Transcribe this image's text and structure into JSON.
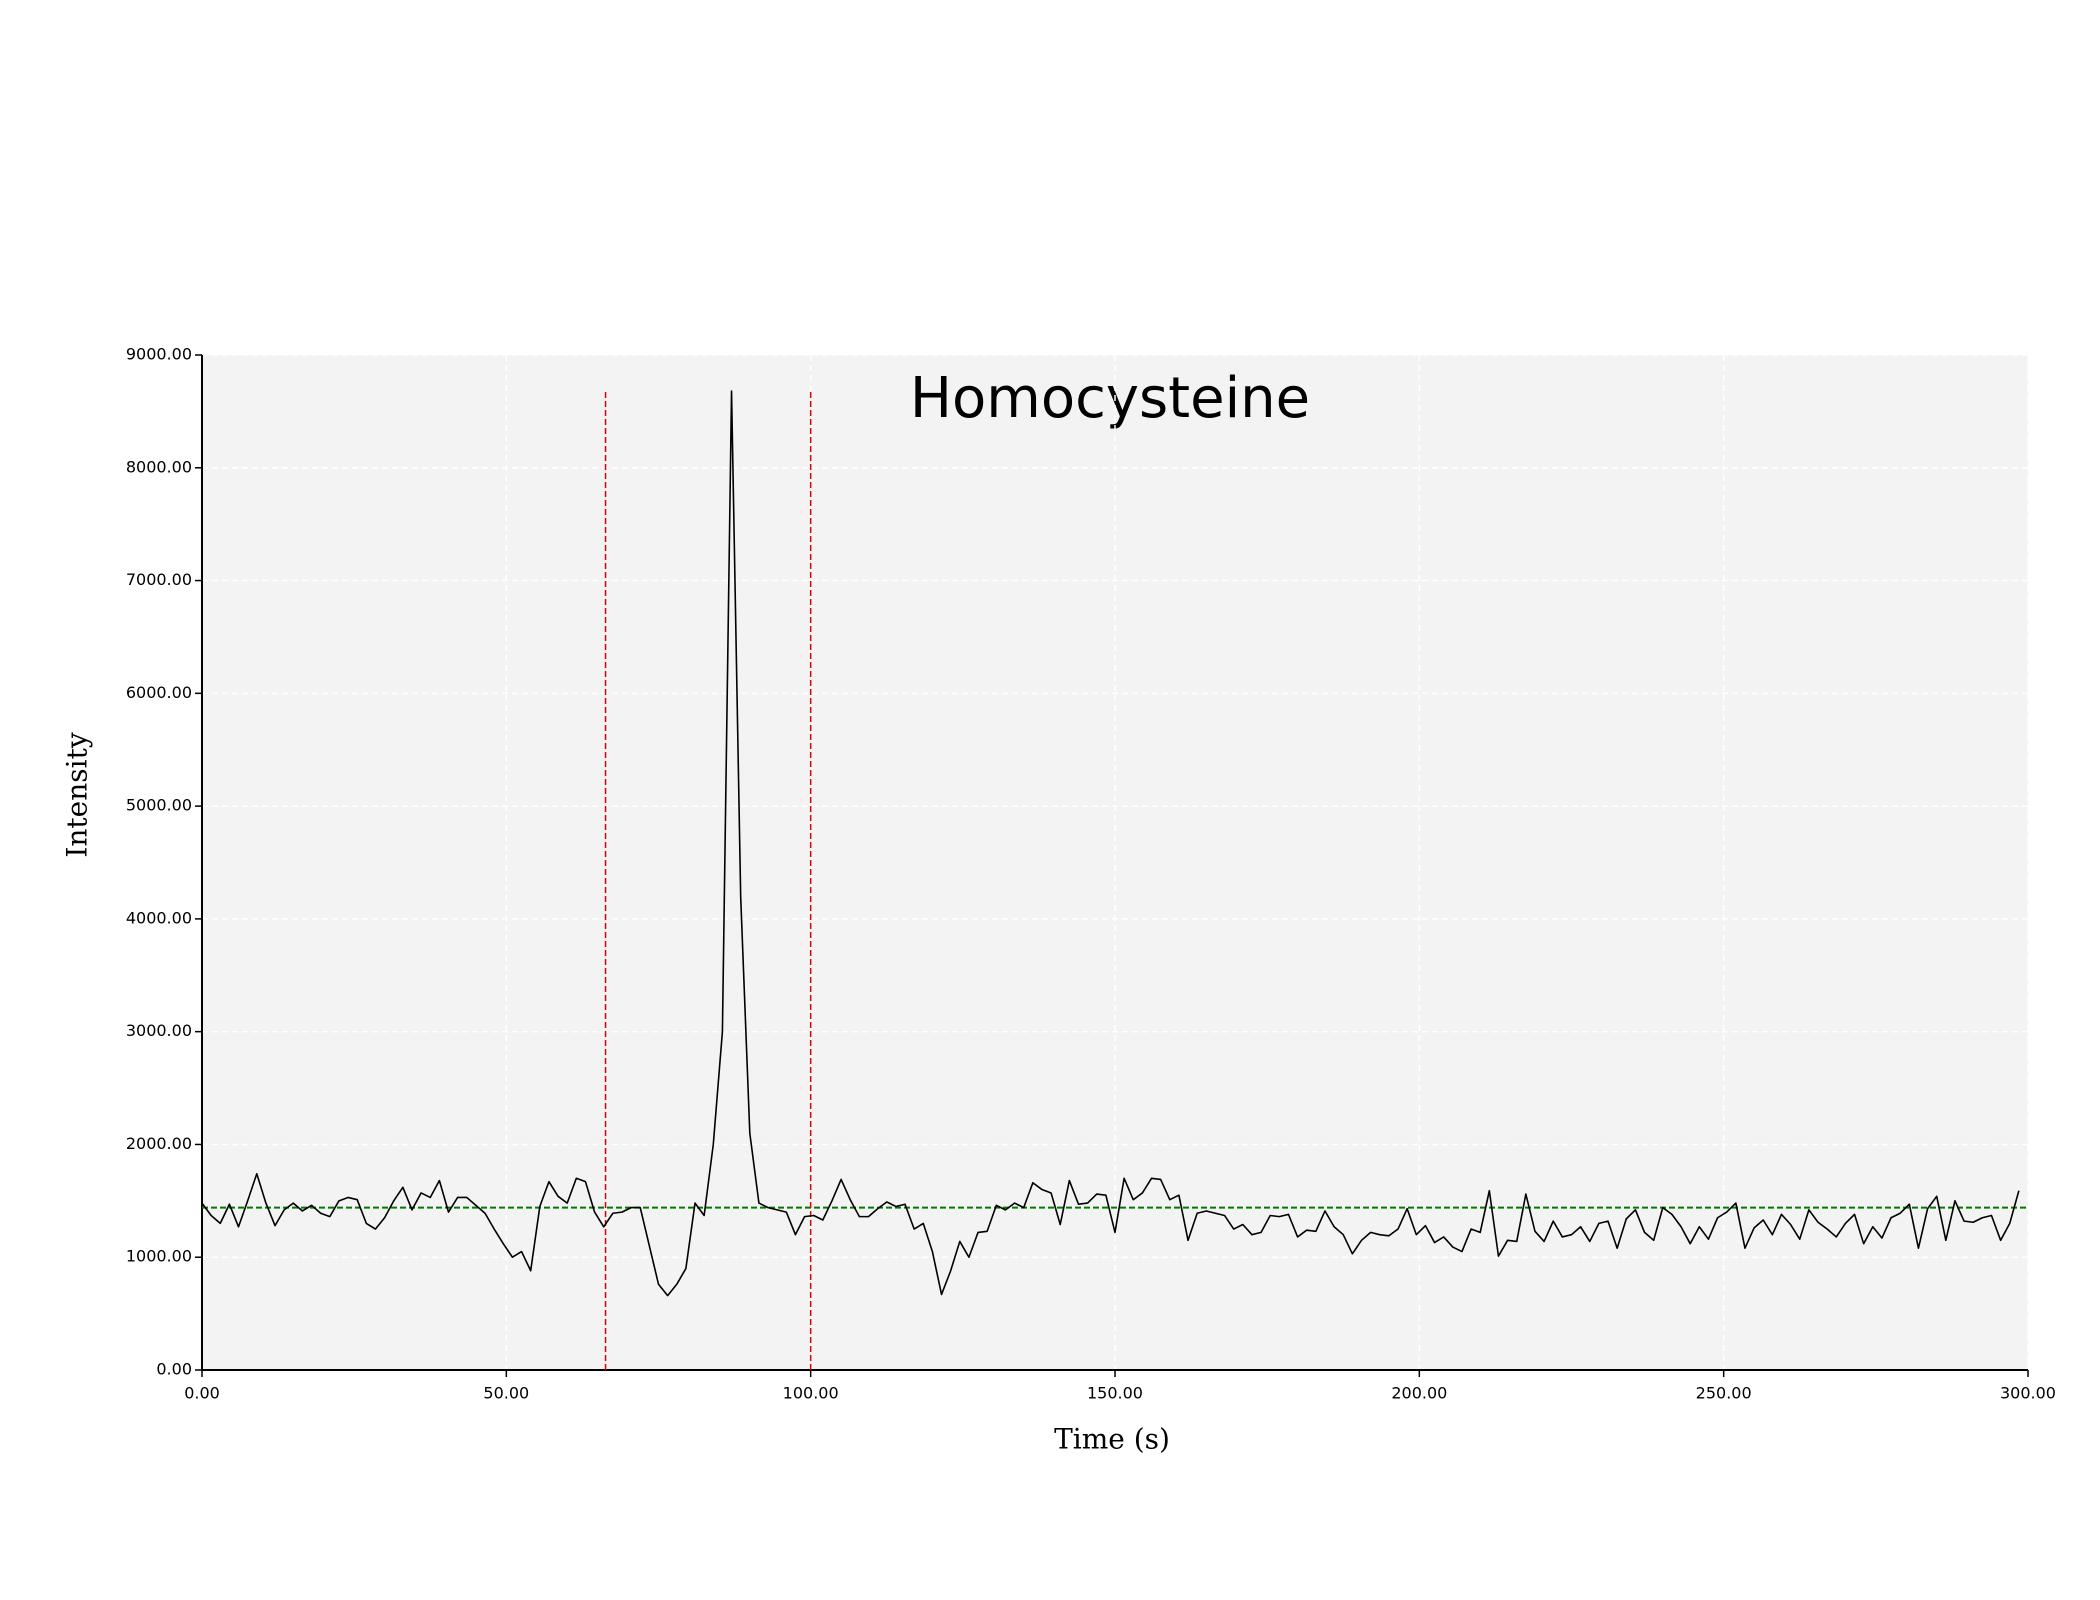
{
  "chart_data": {
    "type": "line",
    "title": "Homocysteine",
    "x_label": "Time (s)",
    "y_label": "Intensity",
    "x": [
      0,
      1.5,
      3,
      4.5,
      6,
      7.5,
      9,
      10.5,
      12,
      13.5,
      15,
      16.5,
      18,
      19.5,
      21,
      22.5,
      24,
      25.5,
      27,
      28.5,
      30,
      31.5,
      33,
      34.5,
      36,
      37.5,
      39,
      40.5,
      42,
      43.5,
      45,
      46.5,
      48,
      49.5,
      51,
      52.5,
      54,
      55.5,
      57,
      58.5,
      60,
      61.5,
      63,
      64.5,
      66,
      67.5,
      69,
      70.5,
      72,
      73.5,
      75,
      76.5,
      78,
      79.5,
      81,
      82.5,
      84,
      85.5,
      87,
      88.5,
      90,
      91.5,
      93,
      94.5,
      96,
      97.5,
      99,
      100.5,
      102,
      103.5,
      105,
      106.5,
      108,
      109.5,
      111,
      112.5,
      114,
      115.5,
      117,
      118.5,
      120,
      121.5,
      123,
      124.5,
      126,
      127.5,
      129,
      130.5,
      132,
      133.5,
      135,
      136.5,
      138,
      139.5,
      141,
      142.5,
      144,
      145.5,
      147,
      148.5,
      150,
      151.5,
      153,
      154.5,
      156,
      157.5,
      159,
      160.5,
      162,
      163.5,
      165,
      166.5,
      168,
      169.5,
      171,
      172.5,
      174,
      175.5,
      177,
      178.5,
      180,
      181.5,
      183,
      184.5,
      186,
      187.5,
      189,
      190.5,
      192,
      193.5,
      195,
      196.5,
      198,
      199.5,
      201,
      202.5,
      204,
      205.5,
      207,
      208.5,
      210,
      211.5,
      213,
      214.5,
      216,
      217.5,
      219,
      220.5,
      222,
      223.5,
      225,
      226.5,
      228,
      229.5,
      231,
      232.5,
      234,
      235.5,
      237,
      238.5,
      240,
      241.5,
      243,
      244.5,
      246,
      247.5,
      249,
      250.5,
      252,
      253.5,
      255,
      256.5,
      258,
      259.5,
      261,
      262.5,
      264,
      265.5,
      267,
      268.5,
      270,
      271.5,
      273,
      274.5,
      276,
      277.5,
      279,
      280.5,
      282,
      283.5,
      285,
      286.5,
      288,
      289.5,
      291,
      292.5,
      294,
      295.5,
      297,
      298.5
    ],
    "series": [
      {
        "name": "Intensity",
        "color": "#000000",
        "values": [
          1480,
          1370,
          1300,
          1470,
          1270,
          1500,
          1740,
          1480,
          1280,
          1420,
          1480,
          1410,
          1460,
          1390,
          1360,
          1500,
          1530,
          1510,
          1300,
          1250,
          1350,
          1500,
          1620,
          1420,
          1570,
          1530,
          1680,
          1400,
          1530,
          1530,
          1460,
          1390,
          1250,
          1120,
          1000,
          1050,
          880,
          1450,
          1670,
          1540,
          1480,
          1700,
          1670,
          1400,
          1270,
          1390,
          1400,
          1440,
          1440,
          1100,
          760,
          660,
          760,
          900,
          1480,
          1370,
          2000,
          3000,
          8680,
          4200,
          2100,
          1480,
          1440,
          1420,
          1400,
          1200,
          1360,
          1370,
          1330,
          1500,
          1690,
          1510,
          1360,
          1360,
          1430,
          1490,
          1450,
          1470,
          1250,
          1300,
          1050,
          670,
          880,
          1140,
          1000,
          1220,
          1230,
          1460,
          1420,
          1480,
          1440,
          1660,
          1600,
          1570,
          1290,
          1680,
          1470,
          1480,
          1560,
          1550,
          1220,
          1700,
          1510,
          1570,
          1700,
          1690,
          1510,
          1550,
          1150,
          1390,
          1410,
          1390,
          1370,
          1250,
          1290,
          1200,
          1220,
          1370,
          1360,
          1380,
          1180,
          1240,
          1230,
          1410,
          1270,
          1200,
          1030,
          1150,
          1220,
          1200,
          1190,
          1250,
          1430,
          1200,
          1280,
          1130,
          1180,
          1090,
          1050,
          1250,
          1220,
          1590,
          1010,
          1150,
          1140,
          1560,
          1230,
          1140,
          1320,
          1180,
          1200,
          1270,
          1140,
          1300,
          1320,
          1080,
          1340,
          1420,
          1220,
          1150,
          1440,
          1380,
          1270,
          1120,
          1270,
          1160,
          1350,
          1400,
          1480,
          1080,
          1260,
          1330,
          1200,
          1380,
          1290,
          1160,
          1420,
          1310,
          1250,
          1180,
          1300,
          1380,
          1120,
          1270,
          1170,
          1350,
          1390,
          1470,
          1080,
          1430,
          1540,
          1150,
          1500,
          1320,
          1310,
          1350,
          1370,
          1150,
          1300,
          1590
        ]
      }
    ],
    "xlim": [
      0,
      300
    ],
    "ylim": [
      0,
      9000
    ],
    "xticks": [
      {
        "value": 0,
        "label": "0.00"
      },
      {
        "value": 50,
        "label": "50.00"
      },
      {
        "value": 100,
        "label": "100.00"
      },
      {
        "value": 150,
        "label": "150.00"
      },
      {
        "value": 200,
        "label": "200.00"
      },
      {
        "value": 250,
        "label": "250.00"
      },
      {
        "value": 300,
        "label": "300.00"
      }
    ],
    "yticks": [
      {
        "value": 0,
        "label": "0.00"
      },
      {
        "value": 1000,
        "label": "1000.00"
      },
      {
        "value": 2000,
        "label": "2000.00"
      },
      {
        "value": 3000,
        "label": "3000.00"
      },
      {
        "value": 4000,
        "label": "4000.00"
      },
      {
        "value": 5000,
        "label": "5000.00"
      },
      {
        "value": 6000,
        "label": "6000.00"
      },
      {
        "value": 7000,
        "label": "7000.00"
      },
      {
        "value": 8000,
        "label": "8000.00"
      },
      {
        "value": 9000,
        "label": "9000.00"
      }
    ],
    "grid": true,
    "vlines": [
      66.3,
      100
    ],
    "vline_color": "#dd0000",
    "baseline": 1440,
    "baseline_color": "#007a00"
  }
}
